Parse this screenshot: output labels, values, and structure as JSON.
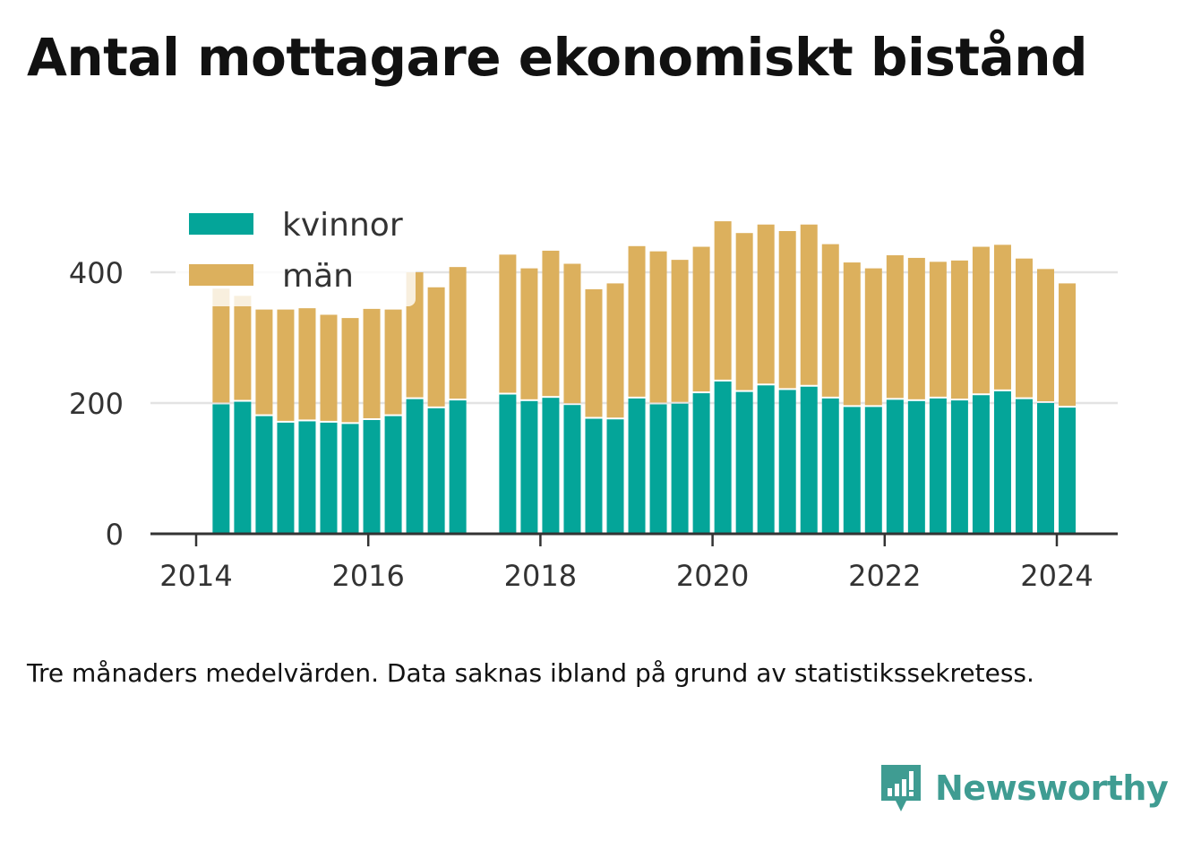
{
  "title": "Antal mottagare ekonomiskt bistånd",
  "note": "Tre månaders medelvärden. Data saknas ibland på grund av statistikssekretess.",
  "logo": {
    "text": "Newsworthy",
    "color": "#3f9c92"
  },
  "colors": {
    "kvinnor": "#04a599",
    "man": "#dcb05d",
    "axis": "#333333",
    "grid": "#e3e3e3"
  },
  "chart_data": {
    "type": "bar",
    "stacked": true,
    "grid": true,
    "legend_position": "top-left",
    "xlim": [
      2013.7,
      2024.7
    ],
    "ylim": [
      0,
      500
    ],
    "yticks": [
      0,
      200,
      400
    ],
    "xticks": [
      2014,
      2016,
      2018,
      2020,
      2022,
      2024
    ],
    "x": [
      2014.29,
      2014.54,
      2014.79,
      2015.04,
      2015.29,
      2015.54,
      2015.79,
      2016.04,
      2016.29,
      2016.54,
      2016.79,
      2017.04,
      2017.62,
      2017.87,
      2018.12,
      2018.37,
      2018.62,
      2018.87,
      2019.12,
      2019.37,
      2019.62,
      2019.87,
      2020.12,
      2020.37,
      2020.62,
      2020.87,
      2021.12,
      2021.37,
      2021.62,
      2021.87,
      2022.12,
      2022.37,
      2022.62,
      2022.87,
      2023.12,
      2023.37,
      2023.62,
      2023.87,
      2024.12
    ],
    "series": [
      {
        "name": "kvinnor",
        "values": [
          198,
          202,
          180,
          170,
          172,
          170,
          168,
          174,
          180,
          206,
          192,
          204,
          213,
          203,
          208,
          197,
          176,
          175,
          207,
          198,
          199,
          215,
          233,
          217,
          227,
          220,
          225,
          207,
          194,
          194,
          205,
          203,
          207,
          204,
          212,
          218,
          206,
          200,
          193
        ]
      },
      {
        "name": "män",
        "values": [
          177,
          162,
          163,
          173,
          173,
          165,
          162,
          170,
          163,
          194,
          185,
          204,
          214,
          203,
          225,
          216,
          198,
          208,
          233,
          234,
          220,
          224,
          245,
          243,
          246,
          243,
          248,
          236,
          221,
          212,
          221,
          219,
          209,
          214,
          227,
          224,
          215,
          205,
          190
        ]
      }
    ]
  }
}
